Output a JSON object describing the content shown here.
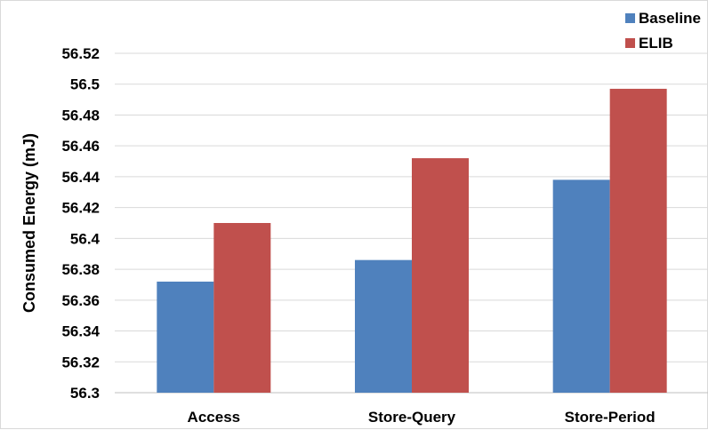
{
  "chart_data": {
    "type": "bar",
    "categories": [
      "Access",
      "Store-Query",
      "Store-Period"
    ],
    "series": [
      {
        "name": "Baseline",
        "color": "#4f81bd",
        "values": [
          56.372,
          56.386,
          56.438
        ]
      },
      {
        "name": "ELIB",
        "color": "#c0504d",
        "values": [
          56.41,
          56.452,
          56.497
        ]
      }
    ],
    "xlabel": "",
    "ylabel": "Consumed Energy (mJ)",
    "ylim": [
      56.3,
      56.52
    ],
    "yticks": [
      "56.3",
      "56.32",
      "56.34",
      "56.36",
      "56.38",
      "56.4",
      "56.42",
      "56.44",
      "56.46",
      "56.48",
      "56.5",
      "56.52"
    ],
    "grid": true,
    "legend_position": "top-right"
  }
}
